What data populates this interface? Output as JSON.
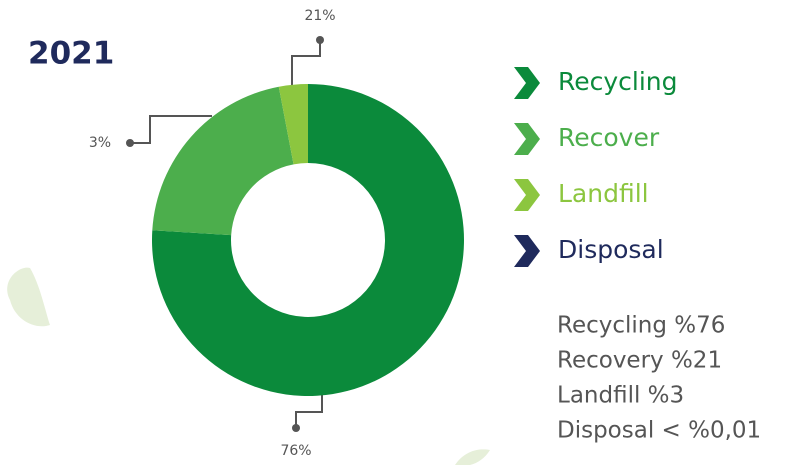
{
  "chart_data": {
    "type": "pie",
    "title": "2021",
    "categories": [
      "Recycling",
      "Recover",
      "Landfill",
      "Disposal"
    ],
    "values": [
      76,
      21,
      3,
      null
    ],
    "colors": [
      "#0b8a3b",
      "#4cae4c",
      "#8cc63f",
      "#1f2a5c"
    ],
    "annotations": [
      "21%",
      "3%",
      "76%"
    ],
    "summary": [
      "Recycling %76",
      "Recovery %21",
      "Landfill %3",
      "Disposal < %0,01"
    ]
  }
}
